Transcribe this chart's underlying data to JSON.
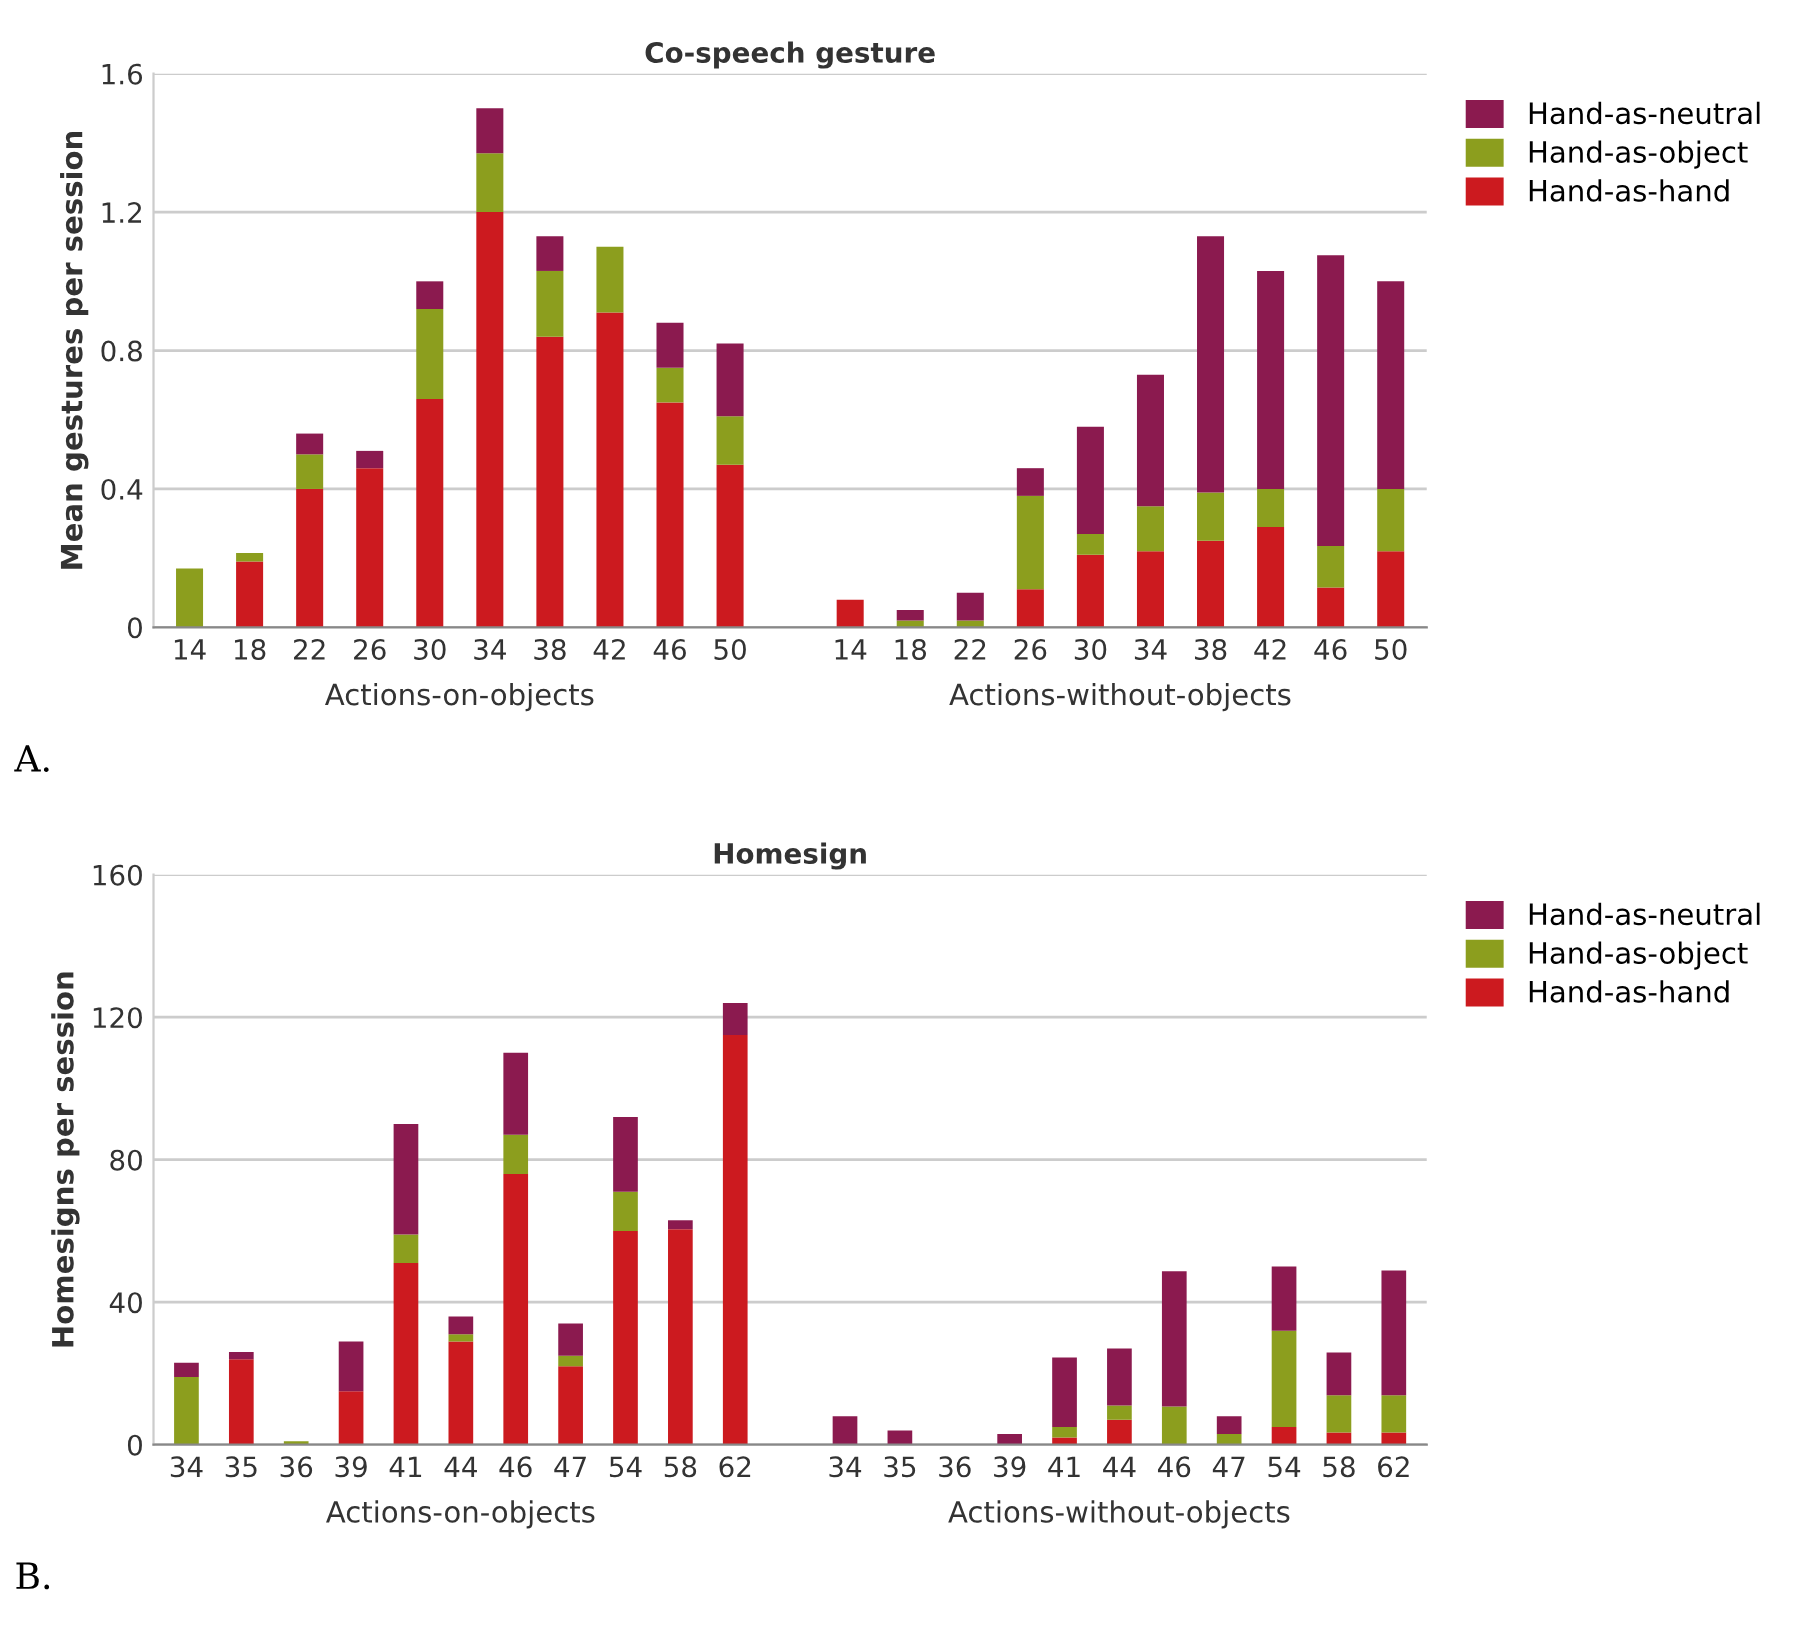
{
  "chart_data": [
    {
      "type": "bar",
      "title": "Co-speech gesture",
      "ylabel": "Mean gestures per session",
      "stacked": true,
      "legend": "right",
      "grid": "y",
      "categories": [
        "14",
        "18",
        "22",
        "26",
        "30",
        "34",
        "38",
        "42",
        "46",
        "50",
        null,
        "14",
        "18",
        "22",
        "26",
        "30",
        "34",
        "38",
        "42",
        "46",
        "50"
      ],
      "ylim": [
        0,
        1.6
      ],
      "yticks": [
        0,
        0.4,
        0.8,
        1.2,
        1.6
      ],
      "series": [
        {
          "name": "Hand-as-hand",
          "color": "#cc1a1f",
          "values": [
            0,
            0.19,
            0.4,
            0.46,
            0.66,
            1.2,
            0.84,
            0.91,
            0.65,
            0.47,
            null,
            0.08,
            0,
            0,
            0.11,
            0.21,
            0.22,
            0.25,
            0.29,
            0.115,
            0.22
          ]
        },
        {
          "name": "Hand-as-object",
          "color": "#8c9e1e",
          "values": [
            0.17,
            0.025,
            0.1,
            0,
            0.26,
            0.17,
            0.19,
            0.19,
            0.1,
            0.14,
            null,
            0,
            0.02,
            0.02,
            0.27,
            0.06,
            0.13,
            0.14,
            0.11,
            0.12,
            0.18
          ]
        },
        {
          "name": "Hand-as-neutral",
          "color": "#8b1a4f",
          "values": [
            0,
            0,
            0.06,
            0.05,
            0.08,
            0.13,
            0.1,
            0,
            0.13,
            0.21,
            null,
            0,
            0.03,
            0.08,
            0.08,
            0.31,
            0.38,
            0.74,
            0.63,
            0.84,
            0.6
          ]
        }
      ],
      "annotations": [
        "Actions-on-objects",
        "Actions-without-objects",
        "A."
      ]
    },
    {
      "type": "bar",
      "title": "Homesign",
      "ylabel": "Homesigns per session",
      "stacked": true,
      "legend": "right",
      "grid": "y",
      "categories": [
        "34",
        "35",
        "36",
        "39",
        "41",
        "44",
        "46",
        "47",
        "54",
        "58",
        "62",
        null,
        "34",
        "35",
        "36",
        "39",
        "41",
        "44",
        "46",
        "47",
        "54",
        "58",
        "62"
      ],
      "ylim": [
        0,
        160
      ],
      "yticks": [
        0,
        40,
        80,
        120,
        160
      ],
      "series": [
        {
          "name": "Hand-as-hand",
          "color": "#cc1a1f",
          "values": [
            0,
            24,
            0,
            15,
            51,
            29,
            76,
            22,
            60,
            60.5,
            115,
            null,
            0,
            0,
            0,
            0,
            2,
            7,
            0,
            0,
            5,
            3.4,
            3.4
          ]
        },
        {
          "name": "Hand-as-object",
          "color": "#8c9e1e",
          "values": [
            19,
            0,
            1,
            0,
            8,
            2,
            11,
            3,
            11,
            0,
            0,
            null,
            0,
            0,
            0,
            0,
            3,
            4,
            10.7,
            3,
            27,
            10.5,
            10.5
          ]
        },
        {
          "name": "Hand-as-neutral",
          "color": "#8b1a4f",
          "values": [
            4,
            2,
            0,
            14,
            31,
            5,
            23,
            9,
            21,
            2.5,
            9,
            null,
            8,
            4,
            0,
            3,
            19.5,
            16,
            38,
            5,
            18,
            12,
            35
          ]
        }
      ],
      "annotations": [
        "Actions-on-objects",
        "Actions-without-objects",
        "B."
      ]
    }
  ]
}
